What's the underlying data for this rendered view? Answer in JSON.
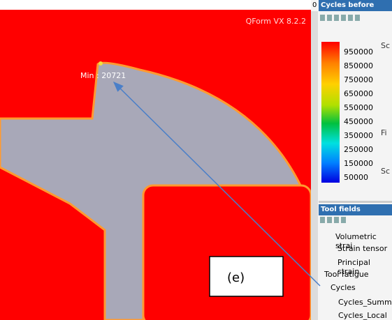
{
  "viewport": {
    "watermark": "QForm VX 8.2.2",
    "min_label": "Min : 20721",
    "panel_label": "(e)"
  },
  "sidebar": {
    "corner": "0",
    "title": "Cycles before crack",
    "legend": [
      "950000",
      "850000",
      "750000",
      "650000",
      "550000",
      "450000",
      "350000",
      "250000",
      "150000",
      "50000"
    ],
    "side_notes": [
      "Sc",
      "Fi",
      "Sc"
    ],
    "tool_fields": {
      "title": "Tool fields",
      "items": [
        "Volumetric strai",
        "Strain tensor",
        "Principal strain",
        "Tool fatigue",
        "Cycles",
        "Cycles_Summar",
        "Cycles_Local"
      ]
    }
  }
}
